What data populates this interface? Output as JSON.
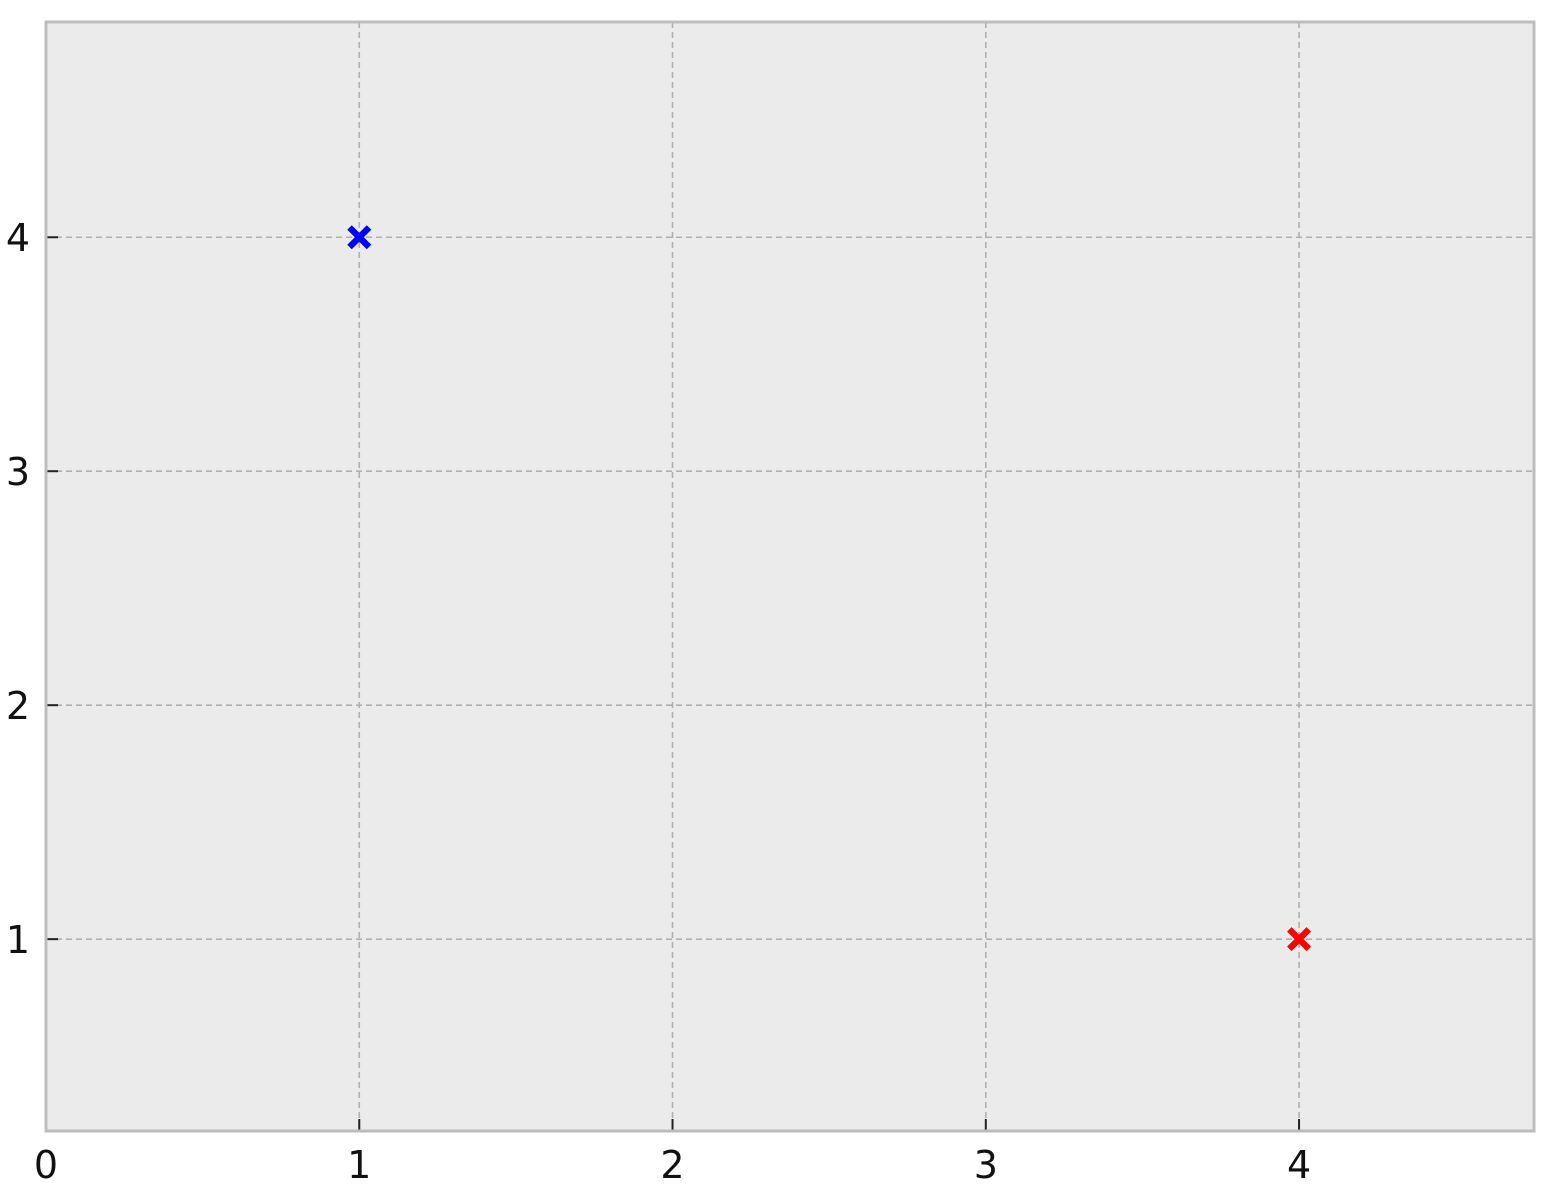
{
  "chart_data": {
    "type": "scatter",
    "title": "",
    "xlabel": "",
    "ylabel": "",
    "xlim": [
      0,
      4.75
    ],
    "ylim": [
      0.18,
      4.92
    ],
    "x_ticks": [
      "0",
      "1",
      "2",
      "3",
      "4"
    ],
    "y_ticks": [
      "1",
      "2",
      "3",
      "4"
    ],
    "grid": true,
    "marker": "x-filled",
    "points": [
      {
        "x": 1,
        "y": 4,
        "color": "#0000ff"
      },
      {
        "x": 4,
        "y": 1,
        "color": "#ff0000"
      }
    ]
  },
  "colors": {
    "plot_background": "#ebebeb",
    "grid": "#b0b0b0",
    "spine": "#bcbcbc"
  }
}
